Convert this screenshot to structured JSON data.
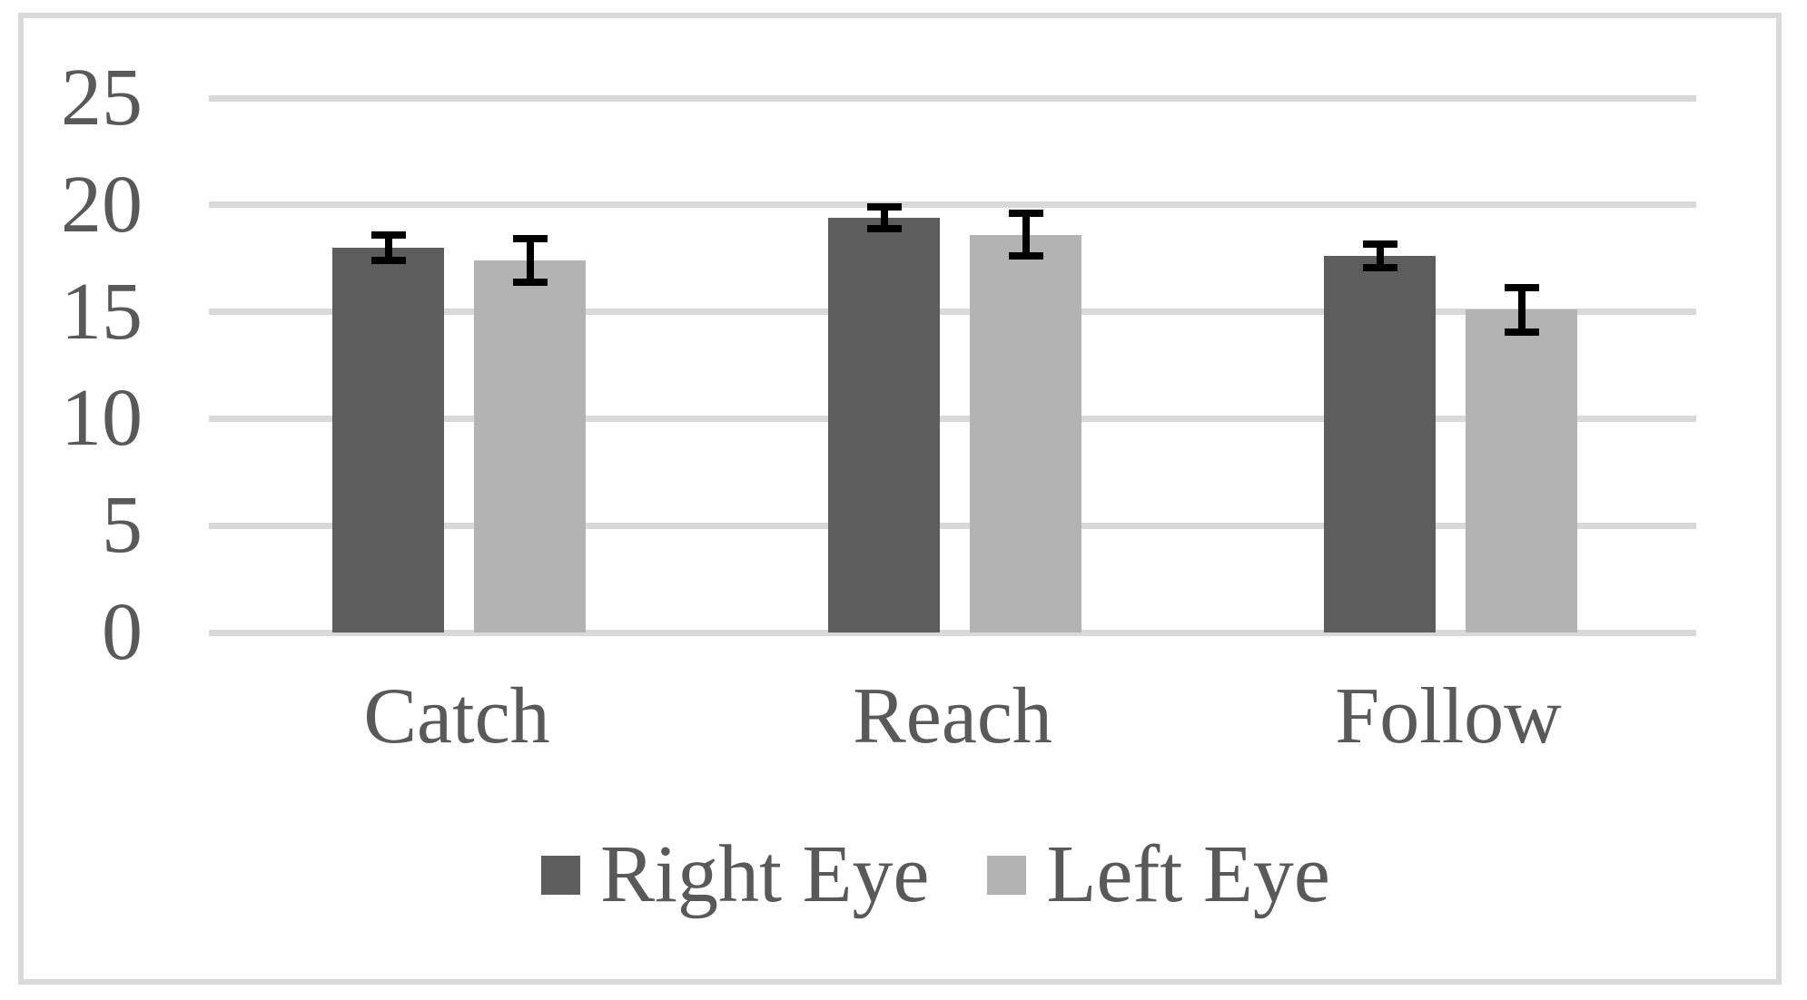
{
  "figure": {
    "background": "#ffffff",
    "frame_border_color": "#d9d9d9"
  },
  "chart_data": {
    "type": "bar",
    "title": "",
    "xlabel": "",
    "ylabel": "",
    "categories": [
      "Catch",
      "Reach",
      "Follow"
    ],
    "series": [
      {
        "name": "Right Eye",
        "color": "#5d5d5d",
        "values": [
          18.0,
          19.4,
          17.6
        ],
        "errors": [
          0.6,
          0.5,
          0.55
        ]
      },
      {
        "name": "Left Eye",
        "color": "#b3b3b3",
        "values": [
          17.4,
          18.6,
          15.1
        ],
        "errors": [
          1.0,
          1.0,
          1.05
        ]
      }
    ],
    "ylim": [
      0,
      25
    ],
    "yticks": [
      0,
      5,
      10,
      15,
      20,
      25
    ],
    "grid": true,
    "gridline_color": "#d9d9d9",
    "error_bar_color": "#000000",
    "text_color": "#595959",
    "legend_position": "bottom"
  }
}
